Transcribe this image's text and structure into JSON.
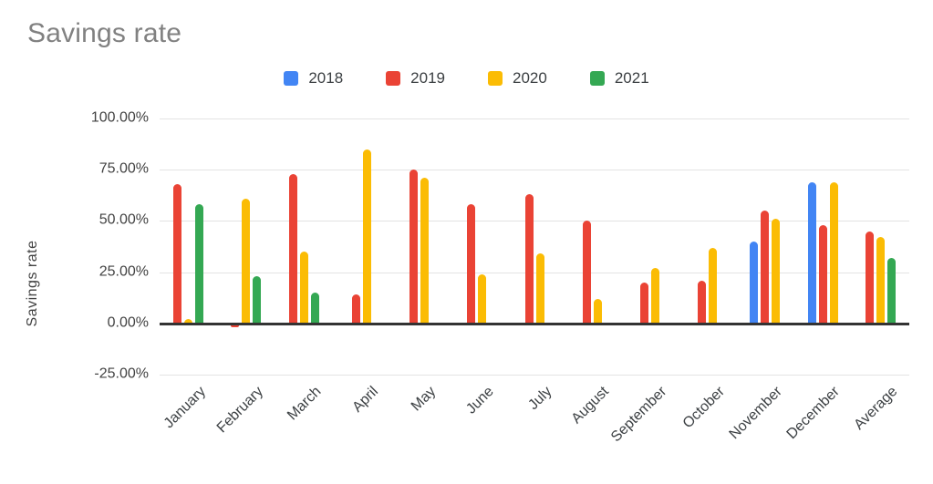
{
  "chart_data": {
    "type": "bar",
    "title": "Savings rate",
    "xlabel": "",
    "ylabel": "Savings rate",
    "ylim": [
      -25,
      100
    ],
    "grid": true,
    "legend_position": "top",
    "value_format": "percent",
    "categories": [
      "January",
      "February",
      "March",
      "April",
      "May",
      "June",
      "July",
      "August",
      "September",
      "October",
      "November",
      "December",
      "Average"
    ],
    "series": [
      {
        "name": "2018",
        "color": "#4285F4",
        "values": [
          null,
          null,
          null,
          null,
          null,
          null,
          null,
          null,
          null,
          null,
          40,
          69,
          null
        ]
      },
      {
        "name": "2019",
        "color": "#EA4335",
        "values": [
          68,
          -1,
          73,
          14,
          75,
          58,
          63,
          50,
          20,
          21,
          55,
          48,
          45
        ]
      },
      {
        "name": "2020",
        "color": "#FBBC04",
        "values": [
          2,
          61,
          35,
          85,
          71,
          24,
          34,
          12,
          27,
          37,
          51,
          69,
          42
        ]
      },
      {
        "name": "2021",
        "color": "#34A853",
        "values": [
          58,
          23,
          15,
          null,
          null,
          null,
          null,
          null,
          null,
          null,
          null,
          null,
          32
        ]
      }
    ],
    "yticks": [
      {
        "value": 100,
        "label": "100.00%"
      },
      {
        "value": 75,
        "label": "75.00%"
      },
      {
        "value": 50,
        "label": "50.00%"
      },
      {
        "value": 25,
        "label": "25.00%"
      },
      {
        "value": 0,
        "label": "0.00%"
      },
      {
        "value": -25,
        "label": "-25.00%"
      }
    ]
  }
}
